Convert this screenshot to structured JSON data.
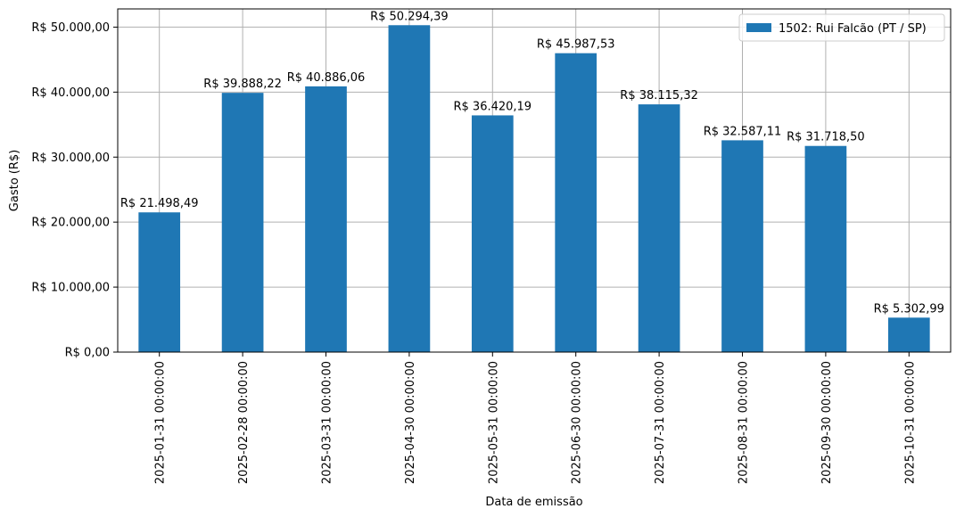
{
  "chart_data": {
    "type": "bar",
    "categories": [
      "2025-01-31 00:00:00",
      "2025-02-28 00:00:00",
      "2025-03-31 00:00:00",
      "2025-04-30 00:00:00",
      "2025-05-31 00:00:00",
      "2025-06-30 00:00:00",
      "2025-07-31 00:00:00",
      "2025-08-31 00:00:00",
      "2025-09-30 00:00:00",
      "2025-10-31 00:00:00"
    ],
    "series": [
      {
        "name": "1502: Rui Falcão (PT / SP)",
        "values": [
          21498.49,
          39888.22,
          40886.06,
          50294.39,
          36420.19,
          45987.53,
          38115.32,
          32587.11,
          31718.5,
          5302.99
        ],
        "color": "#1f77b4"
      }
    ],
    "data_labels": [
      "R$ 21.498,49",
      "R$ 39.888,22",
      "R$ 40.886,06",
      "R$ 50.294,39",
      "R$ 36.420,19",
      "R$ 45.987,53",
      "R$ 38.115,32",
      "R$ 32.587,11",
      "R$ 31.718,50",
      "R$ 5.302,99"
    ],
    "xlabel": "Data de emissão",
    "ylabel": "Gasto (R$)",
    "ylim": [
      0,
      52800
    ],
    "yticks": [
      0,
      10000,
      20000,
      30000,
      40000,
      50000
    ],
    "ytick_labels": [
      "R$ 0,00",
      "R$ 10.000,00",
      "R$ 20.000,00",
      "R$ 30.000,00",
      "R$ 40.000,00",
      "R$ 50.000,00"
    ],
    "grid": true,
    "legend_position": "top-right",
    "grid_color": "#b0b0b0",
    "axis_color": "#000000"
  }
}
